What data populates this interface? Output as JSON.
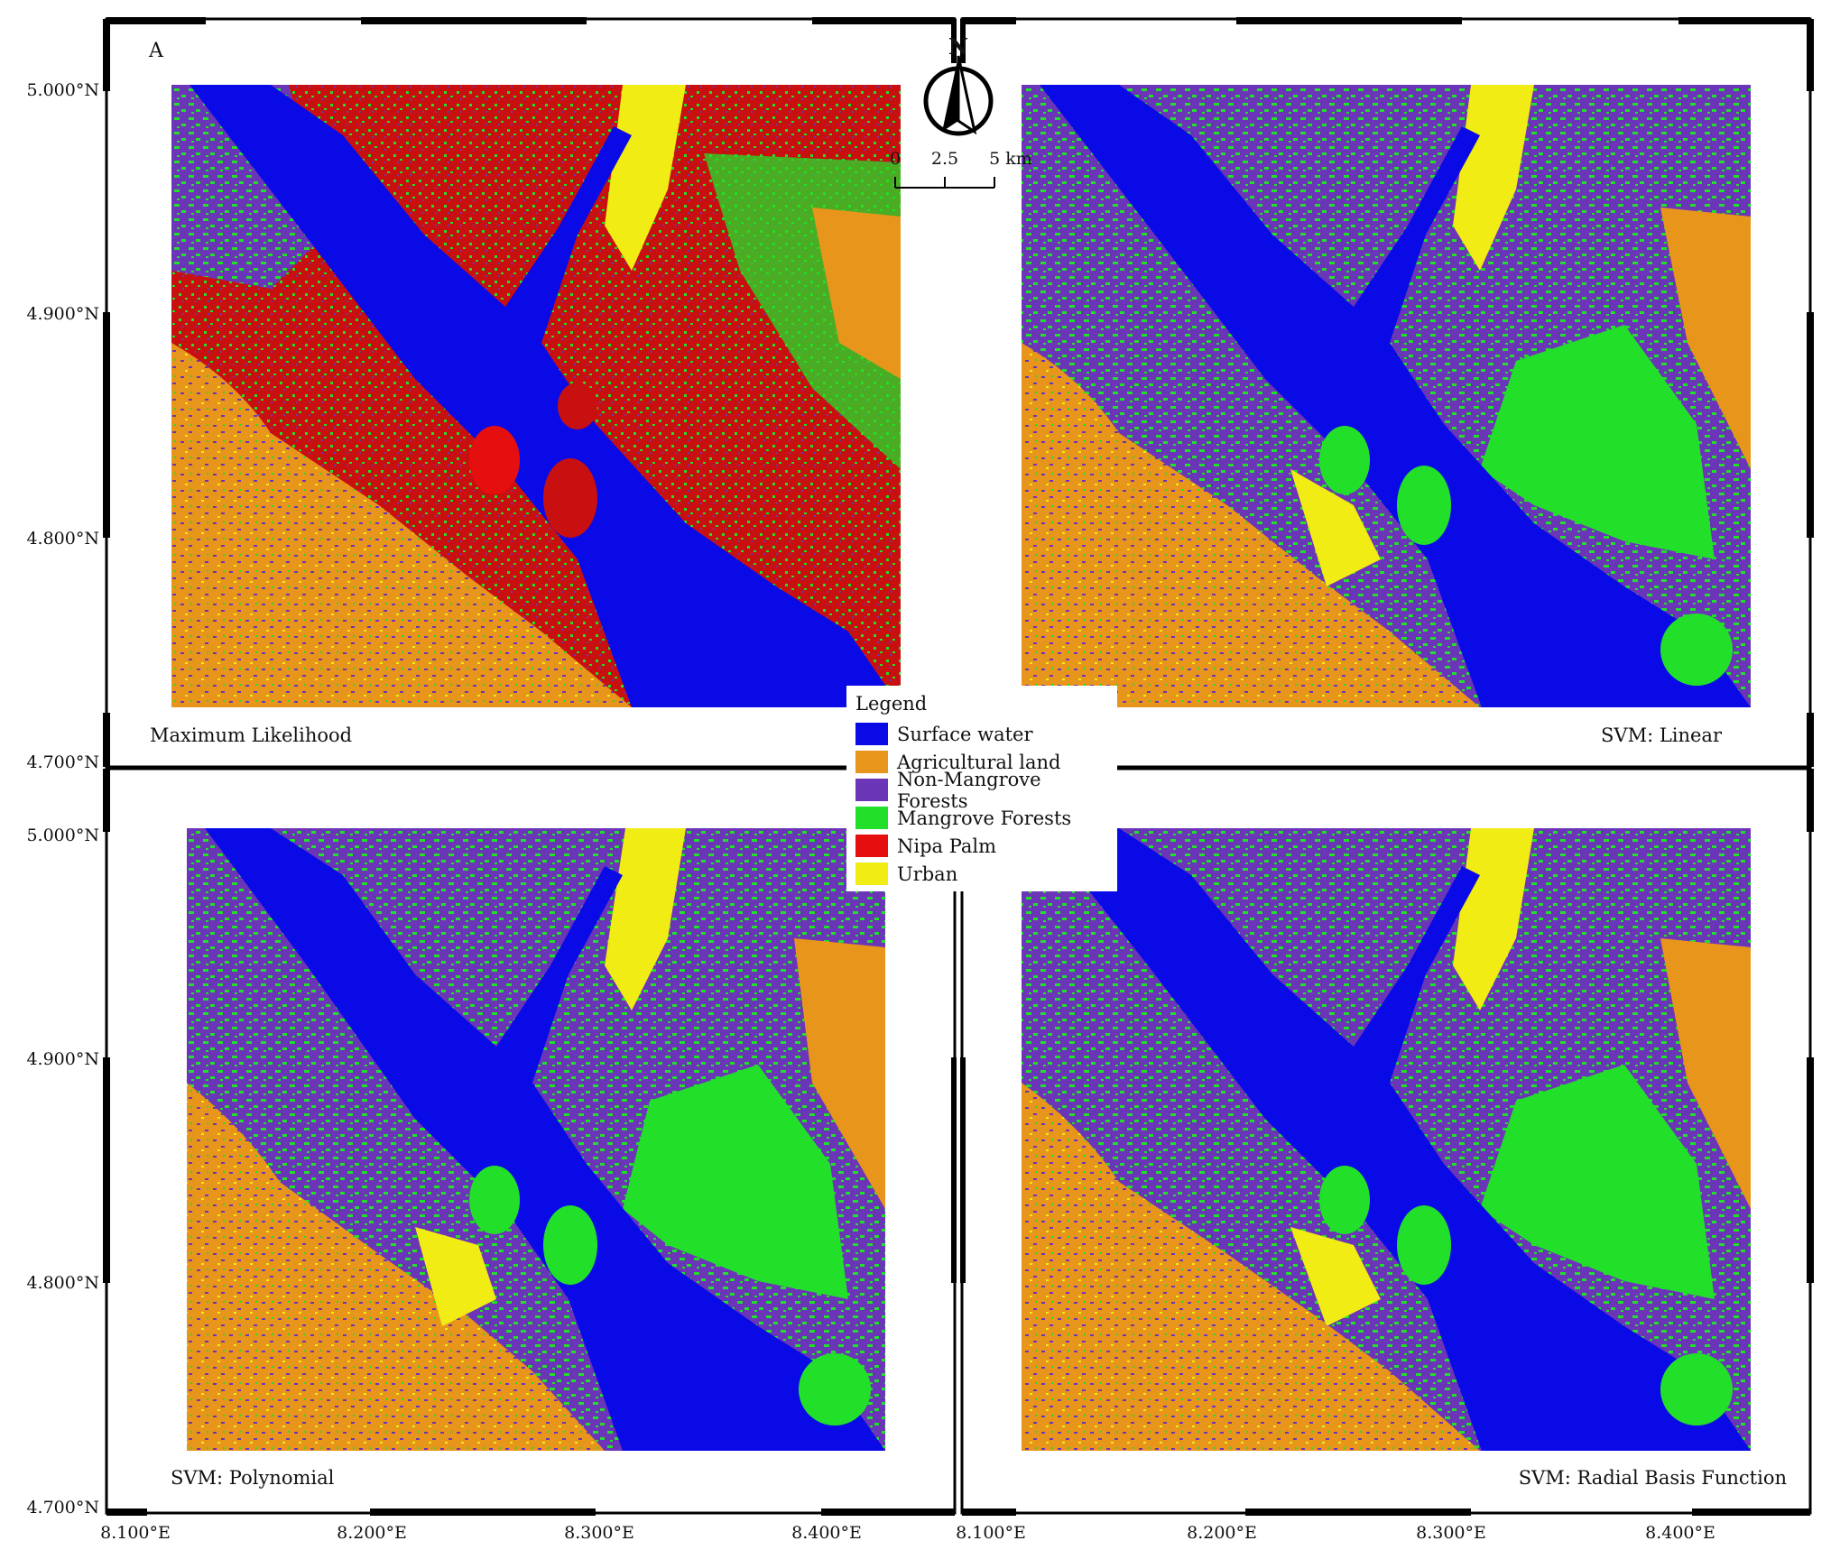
{
  "panel_label": "A",
  "panels": [
    {
      "title": "Maximum Likelihood"
    },
    {
      "title": "SVM: Linear"
    },
    {
      "title": "SVM: Polynomial"
    },
    {
      "title": "SVM: Radial Basis Function"
    }
  ],
  "lat_labels": [
    "5.000°N",
    "4.900°N",
    "4.800°N",
    "4.700°N"
  ],
  "lon_labels": [
    "8.100°E",
    "8.200°E",
    "8.300°E",
    "8.400°E"
  ],
  "north_arrow": {
    "letter": "N"
  },
  "scale_bar": {
    "ticks": [
      "0",
      "2.5",
      "5 km"
    ]
  },
  "legend": {
    "title": "Legend",
    "items": [
      {
        "label": "Surface water",
        "color": "#0a0ae6"
      },
      {
        "label": "Agricultural land",
        "color": "#e8951c"
      },
      {
        "label": "Non-Mangrove Forests",
        "color": "#6b35b8"
      },
      {
        "label": "Mangrove Forests",
        "color": "#22e02a"
      },
      {
        "label": "Nipa Palm",
        "color": "#e60f0f"
      },
      {
        "label": "Urban",
        "color": "#f0ec14"
      }
    ]
  }
}
